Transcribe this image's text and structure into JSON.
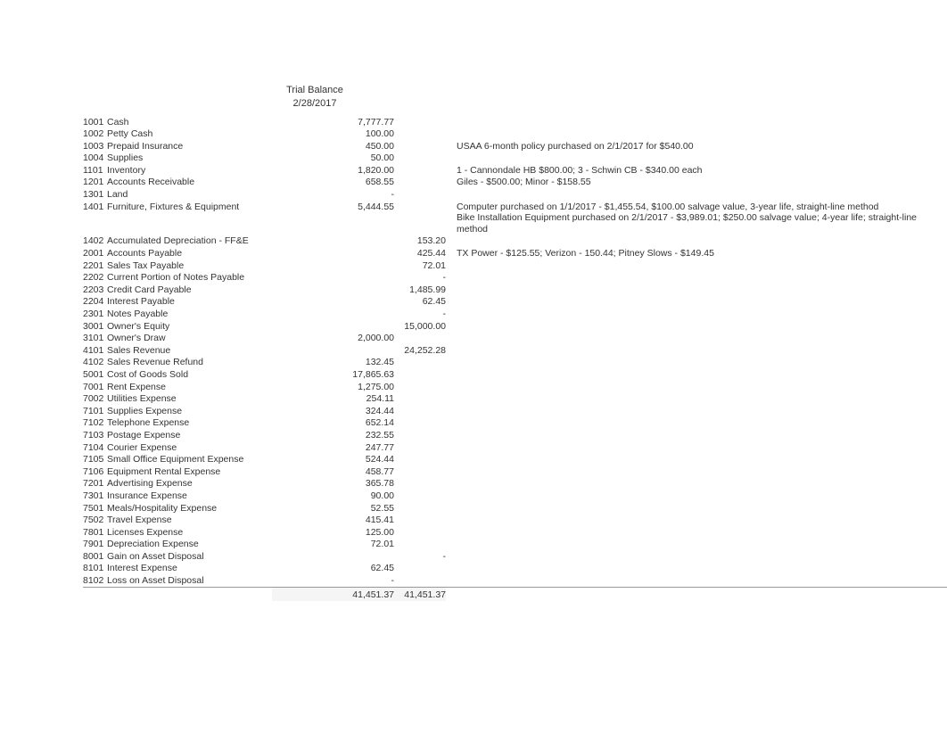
{
  "title": "Trial Balance",
  "date": "2/28/2017",
  "rows": [
    {
      "acct": "1001",
      "name": "Cash",
      "debit": "7,777.77",
      "credit": "",
      "note": ""
    },
    {
      "acct": "1002",
      "name": "Petty Cash",
      "debit": "100.00",
      "credit": "",
      "note": ""
    },
    {
      "acct": "1003",
      "name": "Prepaid Insurance",
      "debit": "450.00",
      "credit": "",
      "note": "USAA 6-month policy purchased on 2/1/2017 for $540.00"
    },
    {
      "acct": "1004",
      "name": "Supplies",
      "debit": "50.00",
      "credit": "",
      "note": ""
    },
    {
      "acct": "1101",
      "name": "Inventory",
      "debit": "1,820.00",
      "credit": "",
      "note": "1 - Cannondale HB $800.00; 3 - Schwin CB - $340.00 each"
    },
    {
      "acct": "1201",
      "name": "Accounts Receivable",
      "debit": "658.55",
      "credit": "",
      "note": "Giles - $500.00; Minor - $158.55"
    },
    {
      "acct": "1301",
      "name": "Land",
      "debit": "-",
      "credit": "",
      "note": ""
    },
    {
      "acct": "1401",
      "name": "Furniture, Fixtures & Equipment",
      "debit": "5,444.55",
      "credit": "",
      "note": "Computer purchased on 1/1/2017 - $1,455.54, $100.00 salvage value, 3-year life, straight-line method\nBike Installation Equipment purchased on 2/1/2017 - $3,989.01; $250.00 salvage value; 4-year life; straight-line method"
    },
    {
      "acct": "1402",
      "name": "Accumulated Depreciation - FF&E",
      "debit": "",
      "credit": "153.20",
      "note": ""
    },
    {
      "acct": "2001",
      "name": "Accounts Payable",
      "debit": "",
      "credit": "425.44",
      "note": "TX Power - $125.55; Verizon - 150.44; Pitney Slows - $149.45"
    },
    {
      "acct": "2201",
      "name": "Sales Tax Payable",
      "debit": "",
      "credit": "72.01",
      "note": ""
    },
    {
      "acct": "2202",
      "name": "Current Portion of Notes Payable",
      "debit": "",
      "credit": "-",
      "note": ""
    },
    {
      "acct": "2203",
      "name": "Credit Card Payable",
      "debit": "",
      "credit": "1,485.99",
      "note": ""
    },
    {
      "acct": "2204",
      "name": "Interest Payable",
      "debit": "",
      "credit": "62.45",
      "note": ""
    },
    {
      "acct": "2301",
      "name": "Notes Payable",
      "debit": "",
      "credit": "-",
      "note": ""
    },
    {
      "acct": "3001",
      "name": "Owner's Equity",
      "debit": "",
      "credit": "15,000.00",
      "note": ""
    },
    {
      "acct": "3101",
      "name": "Owner's Draw",
      "debit": "2,000.00",
      "credit": "",
      "note": ""
    },
    {
      "acct": "4101",
      "name": "Sales Revenue",
      "debit": "",
      "credit": "24,252.28",
      "note": ""
    },
    {
      "acct": "4102",
      "name": "Sales Revenue Refund",
      "debit": "132.45",
      "credit": "",
      "note": ""
    },
    {
      "acct": "5001",
      "name": "Cost of Goods Sold",
      "debit": "17,865.63",
      "credit": "",
      "note": ""
    },
    {
      "acct": "7001",
      "name": "Rent Expense",
      "debit": "1,275.00",
      "credit": "",
      "note": ""
    },
    {
      "acct": "7002",
      "name": "Utilities Expense",
      "debit": "254.11",
      "credit": "",
      "note": ""
    },
    {
      "acct": "7101",
      "name": "Supplies Expense",
      "debit": "324.44",
      "credit": "",
      "note": ""
    },
    {
      "acct": "7102",
      "name": "Telephone Expense",
      "debit": "652.14",
      "credit": "",
      "note": ""
    },
    {
      "acct": "7103",
      "name": "Postage Expense",
      "debit": "232.55",
      "credit": "",
      "note": ""
    },
    {
      "acct": "7104",
      "name": "Courier Expense",
      "debit": "247.77",
      "credit": "",
      "note": ""
    },
    {
      "acct": "7105",
      "name": "Small Office Equipment Expense",
      "debit": "524.44",
      "credit": "",
      "note": ""
    },
    {
      "acct": "7106",
      "name": "Equipment Rental Expense",
      "debit": "458.77",
      "credit": "",
      "note": ""
    },
    {
      "acct": "7201",
      "name": "Advertising Expense",
      "debit": "365.78",
      "credit": "",
      "note": ""
    },
    {
      "acct": "7301",
      "name": "Insurance Expense",
      "debit": "90.00",
      "credit": "",
      "note": ""
    },
    {
      "acct": "7501",
      "name": "Meals/Hospitality Expense",
      "debit": "52.55",
      "credit": "",
      "note": ""
    },
    {
      "acct": "7502",
      "name": "Travel Expense",
      "debit": "415.41",
      "credit": "",
      "note": ""
    },
    {
      "acct": "7801",
      "name": "Licenses Expense",
      "debit": "125.00",
      "credit": "",
      "note": ""
    },
    {
      "acct": "7901",
      "name": "Depreciation Expense",
      "debit": "72.01",
      "credit": "",
      "note": ""
    },
    {
      "acct": "8001",
      "name": "Gain on Asset Disposal",
      "debit": "",
      "credit": "-",
      "note": ""
    },
    {
      "acct": "8101",
      "name": "Interest Expense",
      "debit": "62.45",
      "credit": "",
      "note": ""
    },
    {
      "acct": "8102",
      "name": "Loss on Asset Disposal",
      "debit": "-",
      "credit": "",
      "note": ""
    }
  ],
  "totals": {
    "debit": "41,451.37",
    "credit": "41,451.37"
  },
  "colors": {
    "text": "#333333",
    "background": "#ffffff",
    "total_bg": "#f5f5f5",
    "border": "#999999"
  },
  "layout": {
    "col_acct_width": 27,
    "col_name_width": 185,
    "col_debit_width": 137,
    "col_credit_width": 58,
    "font_size": 10.5
  }
}
